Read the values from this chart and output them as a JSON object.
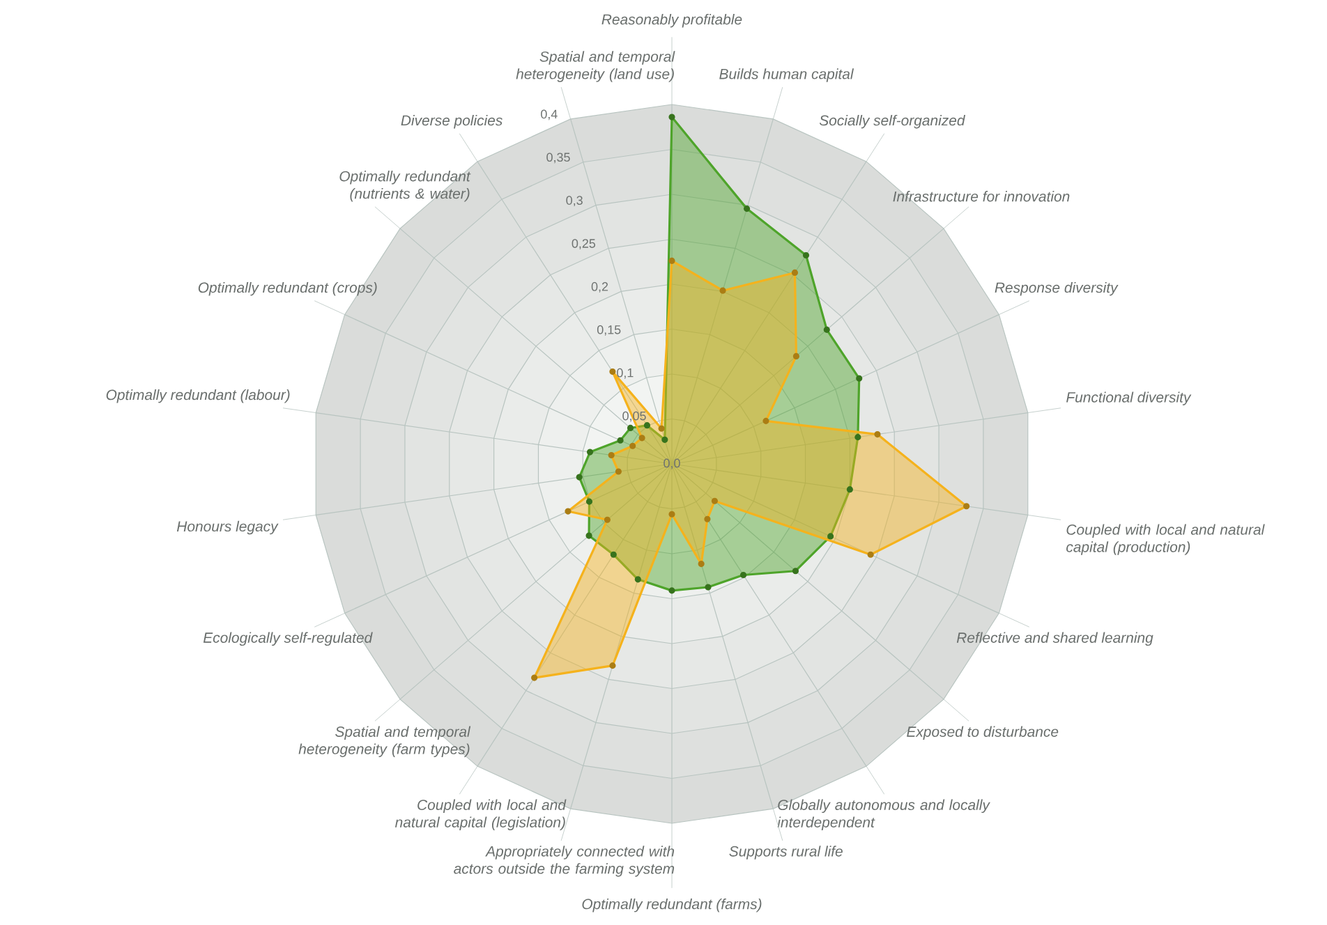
{
  "chart_data": {
    "type": "radar",
    "categories": [
      "Reasonably profitable",
      "Builds human capital",
      "Socially self-organized",
      "Infrastructure for innovation",
      "Response diversity",
      "Functional diversity",
      "Coupled with local and natural capital (production)",
      "Reflective and shared learning",
      "Exposed to disturbance",
      "Globally autonomous and locally interdependent",
      "Supports rural life",
      "Optimally redundant (farms)",
      "Appropriately connected with actors outside the farming system",
      "Coupled with local and natural capital (legislation)",
      "Spatial and temporal heterogeneity (farm types)",
      "Ecologically self-regulated",
      "Honours legacy",
      "Optimally redundant (labour)",
      "Optimally redundant (crops)",
      "Optimally redundant (nutrients & water)",
      "Diverse policies",
      "Spatial and temporal heterogeneity (land use)"
    ],
    "series": [
      {
        "color": "#4ea42a",
        "values": [
          0.386,
          0.296,
          0.276,
          0.228,
          0.229,
          0.209,
          0.2,
          0.194,
          0.182,
          0.147,
          0.143,
          0.141,
          0.134,
          0.12,
          0.122,
          0.101,
          0.104,
          0.092,
          0.063,
          0.061,
          0.051,
          0.028
        ]
      },
      {
        "color": "#f5b21c",
        "values": [
          0.226,
          0.201,
          0.253,
          0.183,
          0.115,
          0.231,
          0.331,
          0.243,
          0.063,
          0.073,
          0.116,
          0.056,
          0.234,
          0.283,
          0.095,
          0.127,
          0.06,
          0.068,
          0.048,
          0.044,
          0.122,
          0.041
        ]
      }
    ],
    "ylim": [
      0,
      0.4
    ],
    "yticks": [
      {
        "value": 0,
        "label": "0,0"
      },
      {
        "value": 0.05,
        "label": "0,05"
      },
      {
        "value": 0.1,
        "label": "0,1"
      },
      {
        "value": 0.15,
        "label": "0,15"
      },
      {
        "value": 0.2,
        "label": "0,2"
      },
      {
        "value": 0.25,
        "label": "0,25"
      },
      {
        "value": 0.3,
        "label": "0,3"
      },
      {
        "value": 0.35,
        "label": "0,35"
      },
      {
        "value": 0.4,
        "label": "0,4"
      }
    ],
    "grid": true,
    "marker": "circle"
  }
}
